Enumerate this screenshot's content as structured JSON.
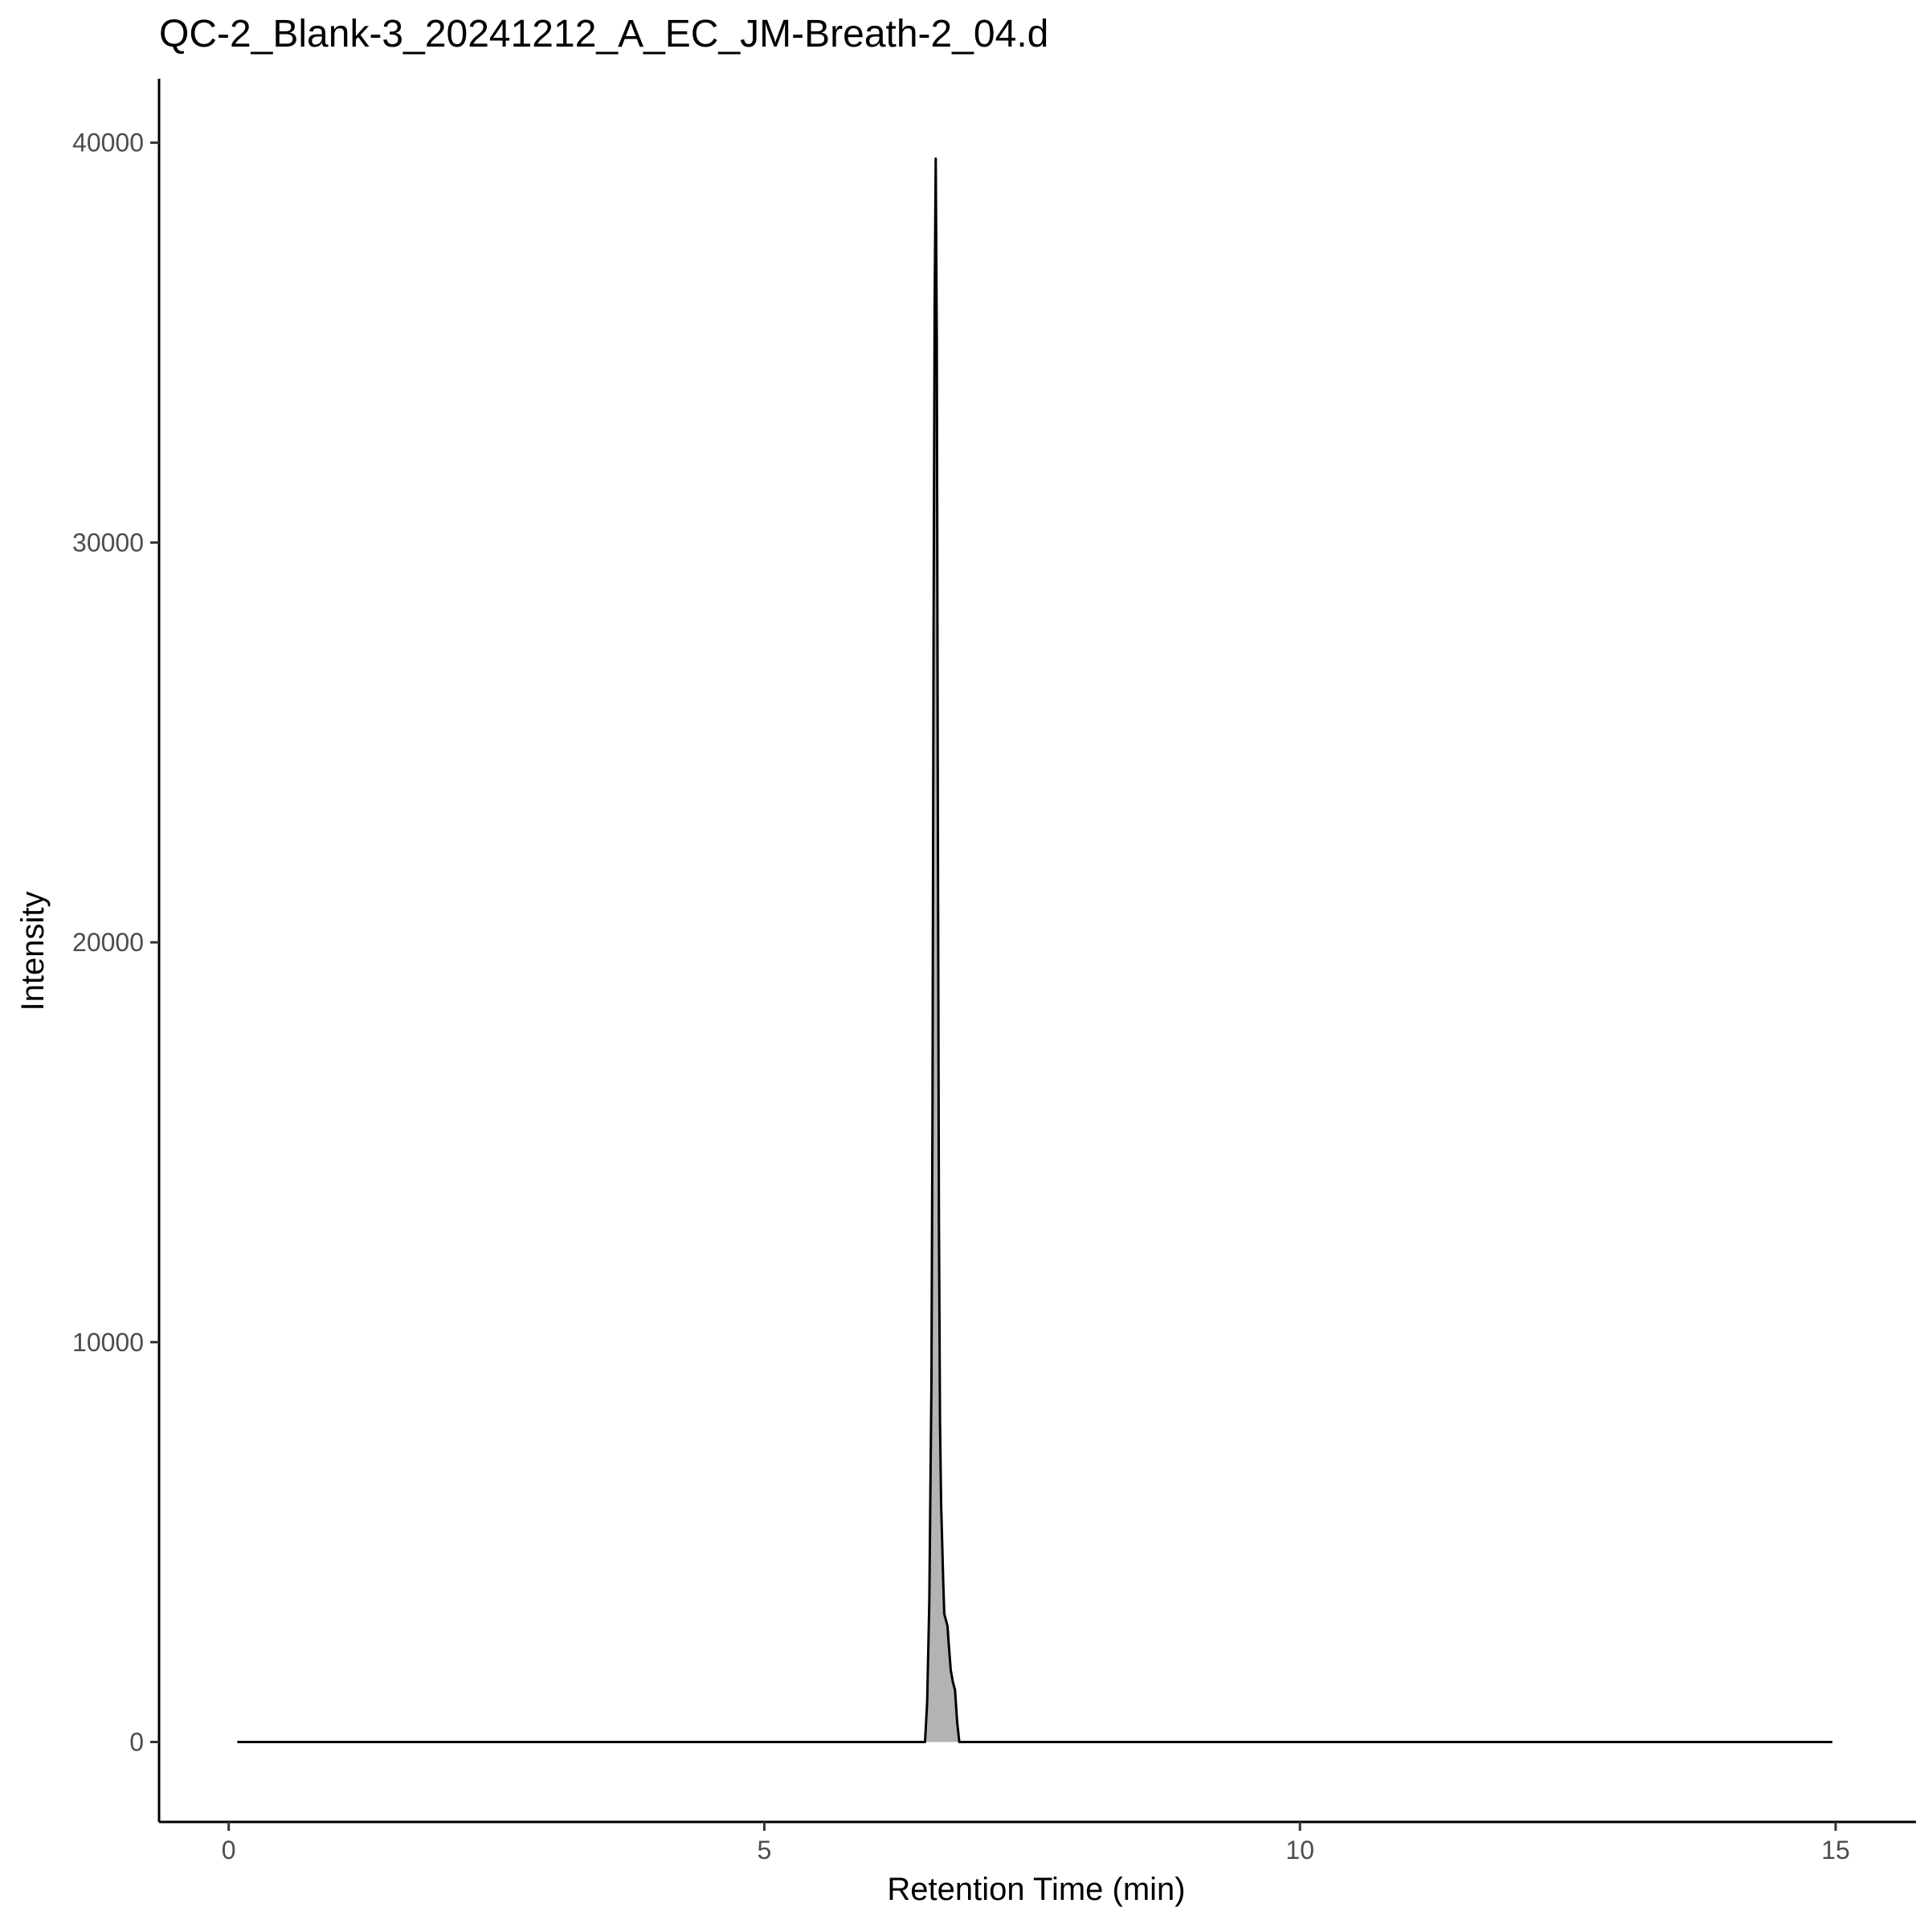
{
  "chart_data": {
    "type": "area",
    "title": "QC-2_Blank-3_20241212_A_EC_JM-Breath-2_04.d",
    "xlabel": "Retention Time (min)",
    "ylabel": "Intensity",
    "xlim": [
      -0.65,
      15.75
    ],
    "ylim": [
      -2000,
      41600
    ],
    "x_ticks": [
      0,
      5,
      10,
      15
    ],
    "x_tick_labels": [
      "0",
      "5",
      "10",
      "15"
    ],
    "y_ticks": [
      0,
      10000,
      20000,
      30000,
      40000
    ],
    "y_tick_labels": [
      "0",
      "10000",
      "20000",
      "30000",
      "40000"
    ],
    "grid": false,
    "legend": "none",
    "line_color": "#000000",
    "fill_color": "#b3b3b3",
    "series": [
      {
        "x": [
          0.08,
          6.5,
          6.52,
          6.54,
          6.56,
          6.57,
          6.58,
          6.59,
          6.6,
          6.61,
          6.62,
          6.63,
          6.64,
          6.65,
          6.66,
          6.67,
          6.68,
          6.7,
          6.71,
          6.72,
          6.74,
          6.76,
          6.78,
          6.8,
          6.82,
          14.97
        ],
        "y": [
          0,
          0,
          1000,
          3500,
          9000,
          16000,
          28000,
          36000,
          39600,
          35000,
          23000,
          13000,
          8000,
          6000,
          5000,
          4000,
          3200,
          3000,
          2900,
          2500,
          1800,
          1500,
          1300,
          500,
          0,
          0
        ]
      }
    ],
    "fill_range": [
      6.5,
      6.82
    ]
  }
}
